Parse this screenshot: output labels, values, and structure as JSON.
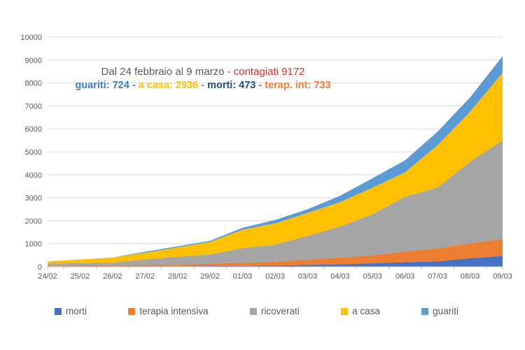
{
  "annotation": {
    "line1": [
      {
        "text": "Dal 24 febbraio al 9 marzo - ",
        "color": "#595959"
      },
      {
        "text": "contagiati 9172",
        "color": "#C83232"
      }
    ],
    "line2": [
      {
        "text": "guariti: 724",
        "color": "#3D7EBF"
      },
      {
        "text": " - ",
        "color": "#808080"
      },
      {
        "text": "a casa: 2936",
        "color": "#FFC000"
      },
      {
        "text": " - ",
        "color": "#808080"
      },
      {
        "text": "morti: 473",
        "color": "#1F4E79"
      },
      {
        "text": " - ",
        "color": "#808080"
      },
      {
        "text": "terap. int: 733",
        "color": "#ED7D31"
      }
    ]
  },
  "chart_data": {
    "type": "area",
    "stacked": true,
    "title": "",
    "xlabel": "",
    "ylabel": "",
    "categories": [
      "24/02",
      "25/02",
      "26/02",
      "27/02",
      "28/02",
      "29/02",
      "01/03",
      "02/03",
      "03/03",
      "04/03",
      "05/03",
      "06/03",
      "07/03",
      "08/03",
      "09/03"
    ],
    "series": [
      {
        "name": "morti",
        "color": "#4472C4",
        "values": [
          7,
          10,
          12,
          17,
          21,
          29,
          34,
          52,
          79,
          107,
          148,
          197,
          233,
          366,
          473
        ]
      },
      {
        "name": "terapia intensiva",
        "color": "#ED7D31",
        "values": [
          26,
          35,
          36,
          56,
          64,
          105,
          140,
          166,
          229,
          295,
          351,
          462,
          567,
          650,
          733
        ]
      },
      {
        "name": "ricoverati",
        "color": "#A5A5A5",
        "values": [
          101,
          114,
          128,
          248,
          345,
          401,
          639,
          742,
          1034,
          1346,
          1790,
          2394,
          2651,
          3557,
          4306
        ]
      },
      {
        "name": "a casa",
        "color": "#FFC000",
        "values": [
          94,
          162,
          221,
          284,
          412,
          543,
          798,
          927,
          1000,
          1065,
          1155,
          1060,
          1843,
          2180,
          2936
        ]
      },
      {
        "name": "guariti",
        "color": "#5B9BD5",
        "values": [
          1,
          1,
          3,
          45,
          46,
          50,
          83,
          149,
          160,
          276,
          414,
          523,
          589,
          622,
          724
        ]
      }
    ],
    "totals_last_day": 9172,
    "ylim": [
      0,
      10000
    ],
    "yticks": [
      0,
      1000,
      2000,
      3000,
      4000,
      5000,
      6000,
      7000,
      8000,
      9000,
      10000
    ],
    "grid": "horizontal",
    "gridline_color": "#D9D9D9",
    "axis_line_color": "#BFBFBF",
    "axis_label_color": "#595959",
    "legend_position": "bottom"
  }
}
